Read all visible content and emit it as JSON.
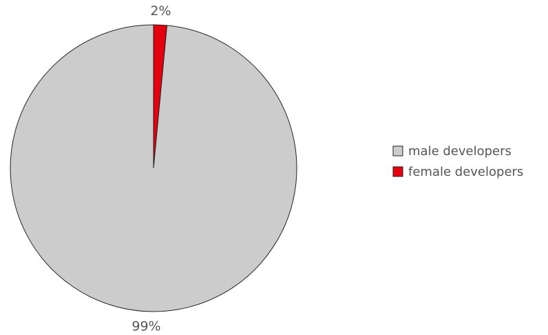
{
  "chart_data": {
    "type": "pie",
    "title": "",
    "labels": [
      "male developers",
      "female developers"
    ],
    "values": [
      98.5,
      1.5
    ],
    "value_labels": [
      "99%",
      "2%"
    ],
    "colors": [
      "#cccccc",
      "#e3000f"
    ],
    "start": "top",
    "direction": "clockwise, female slice first",
    "legend": "right"
  }
}
